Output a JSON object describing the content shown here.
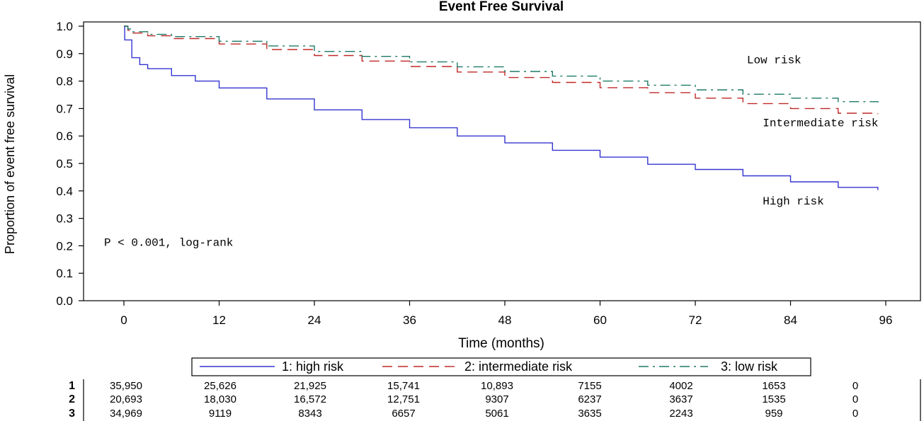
{
  "chart_data": {
    "type": "line",
    "title": "Event Free Survival",
    "xlabel": "Time (months)",
    "ylabel": "Proportion of event free survival",
    "xlim": [
      0,
      96
    ],
    "ylim": [
      0,
      1
    ],
    "x_ticks": [
      "0",
      "12",
      "24",
      "36",
      "48",
      "60",
      "72",
      "84",
      "96"
    ],
    "y_ticks": [
      "0.0",
      "0.1",
      "0.2",
      "0.3",
      "0.4",
      "0.5",
      "0.6",
      "0.7",
      "0.8",
      "0.9",
      "1.0"
    ],
    "grid": false,
    "legend_position": "bottom",
    "series": [
      {
        "name": "1: high risk",
        "color": "#3535d0",
        "dash": "solid",
        "x": [
          0,
          0.1,
          0.5,
          1,
          2,
          3,
          6,
          9,
          12,
          18,
          24,
          30,
          36,
          42,
          48,
          54,
          60,
          66,
          72,
          78,
          84,
          90,
          95
        ],
        "y": [
          1.0,
          0.95,
          0.95,
          0.885,
          0.86,
          0.845,
          0.82,
          0.8,
          0.775,
          0.735,
          0.695,
          0.66,
          0.63,
          0.6,
          0.575,
          0.548,
          0.523,
          0.497,
          0.478,
          0.455,
          0.433,
          0.413,
          0.403
        ]
      },
      {
        "name": "2: intermediate risk",
        "color": "#c02828",
        "dash": "dashed",
        "x": [
          0,
          0.5,
          1,
          3,
          6,
          12,
          18,
          24,
          30,
          36,
          42,
          48,
          54,
          60,
          66,
          72,
          78,
          84,
          90,
          95
        ],
        "y": [
          1.0,
          0.985,
          0.975,
          0.965,
          0.955,
          0.935,
          0.915,
          0.893,
          0.873,
          0.853,
          0.833,
          0.813,
          0.795,
          0.776,
          0.758,
          0.738,
          0.718,
          0.7,
          0.683,
          0.68
        ]
      },
      {
        "name": "3: low risk",
        "color": "#1c7a66",
        "dash": "dashdot",
        "x": [
          0,
          0.5,
          1,
          3,
          6,
          12,
          18,
          24,
          30,
          36,
          42,
          48,
          54,
          60,
          66,
          72,
          78,
          84,
          90,
          95
        ],
        "y": [
          1.0,
          0.99,
          0.98,
          0.97,
          0.962,
          0.945,
          0.928,
          0.908,
          0.89,
          0.87,
          0.852,
          0.835,
          0.818,
          0.8,
          0.785,
          0.768,
          0.752,
          0.738,
          0.725,
          0.722
        ]
      }
    ],
    "annotations": [
      {
        "text": "Low risk",
        "x": 78.5,
        "y": 0.865
      },
      {
        "text": "Intermediate risk",
        "x": 80.5,
        "y": 0.635
      },
      {
        "text": "High risk",
        "x": 80.5,
        "y": 0.35
      },
      {
        "text": "P < 0.001, log-rank",
        "x": -2.5,
        "y": 0.2
      }
    ],
    "at_risk_table": {
      "row_labels": [
        "1",
        "2",
        "3"
      ],
      "rows": [
        [
          "35,950",
          "25,626",
          "21,925",
          "15,741",
          "10,893",
          "7155",
          "4002",
          "1653",
          "0"
        ],
        [
          "20,693",
          "18,030",
          "16,572",
          "12,751",
          "9307",
          "6237",
          "3637",
          "1535",
          "0"
        ],
        [
          "34,969",
          "9119",
          "8343",
          "6657",
          "5061",
          "3635",
          "2243",
          "959",
          "0"
        ]
      ]
    }
  }
}
